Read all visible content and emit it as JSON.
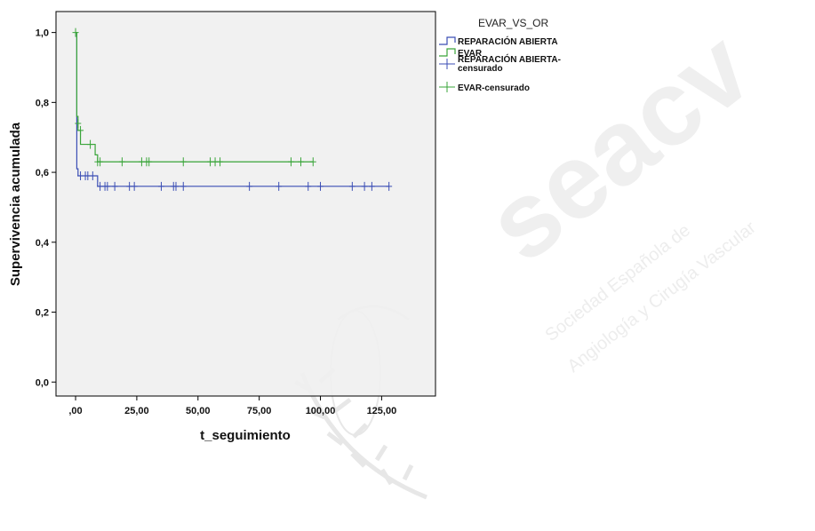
{
  "chart_data": {
    "type": "line",
    "subtype": "kaplan-meier-step",
    "title": "",
    "xlabel": "t_seguimiento",
    "ylabel": "Supervivencia acumulada",
    "xlim": [
      -8,
      147
    ],
    "ylim": [
      -0.04,
      1.06
    ],
    "x_ticks": [
      0,
      25,
      50,
      75,
      100,
      125
    ],
    "x_tick_labels": [
      ",00",
      "25,00",
      "50,00",
      "75,00",
      "100,00",
      "125,00"
    ],
    "y_ticks": [
      0,
      0.2,
      0.4,
      0.6,
      0.8,
      1.0
    ],
    "y_tick_labels": [
      "0,0",
      "0,2",
      "0,4",
      "0,6",
      "0,8",
      "1,0"
    ],
    "grid": false,
    "plot_background": "#f0f0f0",
    "legend": {
      "title": "EVAR_VS_OR",
      "position": "right",
      "entries": [
        {
          "label": "REPARACIÓN ABIERTA",
          "kind": "step",
          "color": "#3b4eb5"
        },
        {
          "label": "EVAR",
          "kind": "step",
          "color": "#3aa53a"
        },
        {
          "label_lines": [
            "REPARACIÓN ABIERTA-",
            "censurado"
          ],
          "kind": "censor",
          "color": "#3b4eb5"
        },
        {
          "label": "EVAR-censurado",
          "kind": "censor",
          "color": "#3aa53a"
        }
      ]
    },
    "series": [
      {
        "name": "REPARACIÓN ABIERTA",
        "color": "#3b4eb5",
        "steps": [
          [
            0,
            1.0
          ],
          [
            0.5,
            0.61
          ],
          [
            1,
            0.59
          ],
          [
            9,
            0.56
          ],
          [
            128,
            0.56
          ]
        ],
        "censored": [
          [
            2,
            0.59
          ],
          [
            4,
            0.59
          ],
          [
            5,
            0.59
          ],
          [
            7,
            0.59
          ],
          [
            10,
            0.56
          ],
          [
            12,
            0.56
          ],
          [
            13,
            0.56
          ],
          [
            16,
            0.56
          ],
          [
            22,
            0.56
          ],
          [
            24,
            0.56
          ],
          [
            35,
            0.56
          ],
          [
            40,
            0.56
          ],
          [
            41,
            0.56
          ],
          [
            44,
            0.56
          ],
          [
            71,
            0.56
          ],
          [
            83,
            0.56
          ],
          [
            95,
            0.56
          ],
          [
            100,
            0.56
          ],
          [
            113,
            0.56
          ],
          [
            118,
            0.56
          ],
          [
            121,
            0.56
          ],
          [
            128,
            0.56
          ]
        ]
      },
      {
        "name": "EVAR",
        "color": "#3aa53a",
        "steps": [
          [
            0,
            1.0
          ],
          [
            0.5,
            0.76
          ],
          [
            1,
            0.72
          ],
          [
            2,
            0.68
          ],
          [
            8,
            0.65
          ],
          [
            9,
            0.63
          ],
          [
            97,
            0.63
          ]
        ],
        "censored": [
          [
            0,
            1.0
          ],
          [
            1,
            0.74
          ],
          [
            2,
            0.72
          ],
          [
            6,
            0.68
          ],
          [
            9,
            0.63
          ],
          [
            10,
            0.63
          ],
          [
            19,
            0.63
          ],
          [
            27,
            0.63
          ],
          [
            29,
            0.63
          ],
          [
            30,
            0.63
          ],
          [
            44,
            0.63
          ],
          [
            55,
            0.63
          ],
          [
            57,
            0.63
          ],
          [
            59,
            0.63
          ],
          [
            88,
            0.63
          ],
          [
            92,
            0.63
          ],
          [
            97,
            0.63
          ]
        ]
      }
    ]
  },
  "watermark": {
    "logo_text": "seacv",
    "society_line_1": "Sociedad Española de",
    "society_line_2": "Angiología y Cirugía Vascular"
  }
}
